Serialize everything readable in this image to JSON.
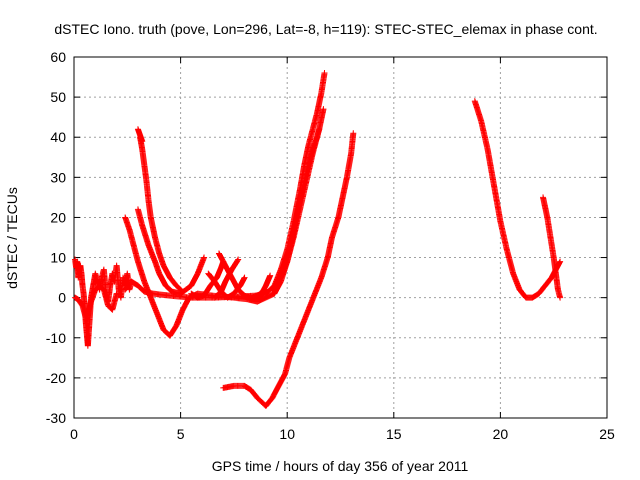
{
  "chart_data": {
    "type": "scatter",
    "title": "dSTEC Iono. truth (pove, Lon=296, Lat=-8, h=119): STEC-STEC_elemax in phase cont.",
    "xlabel": "GPS time / hours of day 356 of year 2011",
    "ylabel": "dSTEC  / TECUs",
    "xlim": [
      0,
      25
    ],
    "ylim": [
      -30,
      60
    ],
    "xticks": [
      0,
      5,
      10,
      15,
      20,
      25
    ],
    "yticks": [
      -30,
      -20,
      -10,
      0,
      10,
      20,
      30,
      40,
      50,
      60
    ],
    "grid": true,
    "marker": "+",
    "series_color": "#ff0000",
    "series": [
      {
        "arcs": [
          [
            [
              0.05,
              9.5
            ],
            [
              0.1,
              7.5
            ],
            [
              0.15,
              9
            ],
            [
              0.2,
              5
            ],
            [
              0.3,
              8
            ],
            [
              0.35,
              6
            ],
            [
              0.4,
              3
            ],
            [
              0.45,
              1
            ],
            [
              0.5,
              -2
            ],
            [
              0.55,
              -6
            ],
            [
              0.6,
              -9
            ],
            [
              0.65,
              -12
            ],
            [
              0.7,
              -8
            ],
            [
              0.75,
              -4
            ],
            [
              0.8,
              0
            ],
            [
              0.9,
              3
            ],
            [
              1.0,
              6
            ],
            [
              1.1,
              4
            ],
            [
              1.2,
              2
            ],
            [
              1.3,
              5
            ],
            [
              1.4,
              7
            ],
            [
              1.5,
              1
            ],
            [
              1.6,
              -1
            ],
            [
              1.7,
              3
            ],
            [
              1.8,
              6
            ],
            [
              1.9,
              4
            ],
            [
              2.0,
              8
            ],
            [
              2.1,
              2
            ],
            [
              2.2,
              0
            ],
            [
              2.3,
              5
            ],
            [
              2.4,
              3
            ],
            [
              2.5,
              6
            ],
            [
              2.6,
              2
            ],
            [
              2.7,
              4
            ]
          ],
          [
            [
              0.05,
              0
            ],
            [
              0.2,
              -0.5
            ],
            [
              0.4,
              -2
            ],
            [
              0.6,
              -6
            ],
            [
              0.7,
              -3
            ],
            [
              0.8,
              -1
            ],
            [
              1.0,
              2
            ],
            [
              1.2,
              3
            ],
            [
              1.4,
              2
            ],
            [
              1.6,
              -2
            ],
            [
              1.8,
              -3
            ],
            [
              2.0,
              1
            ]
          ],
          [
            [
              2.4,
              20
            ],
            [
              2.6,
              17
            ],
            [
              2.8,
              13
            ],
            [
              3.0,
              9
            ],
            [
              3.3,
              4
            ],
            [
              3.6,
              0
            ],
            [
              3.9,
              -4
            ],
            [
              4.2,
              -8
            ],
            [
              4.5,
              -9.5
            ],
            [
              4.8,
              -7
            ],
            [
              5.1,
              -3
            ],
            [
              5.4,
              0
            ],
            [
              5.8,
              1
            ],
            [
              6.5,
              0.5
            ],
            [
              7.5,
              0
            ],
            [
              8.3,
              -0.5
            ],
            [
              8.7,
              0
            ],
            [
              9.0,
              3
            ],
            [
              9.2,
              5.5
            ]
          ],
          [
            [
              2.4,
              2
            ],
            [
              2.7,
              4
            ],
            [
              3.0,
              3
            ],
            [
              3.3,
              1.5
            ],
            [
              3.7,
              1
            ],
            [
              4.5,
              0.5
            ],
            [
              5.5,
              0
            ],
            [
              6.5,
              0
            ],
            [
              7.5,
              0.2
            ],
            [
              8.5,
              0.5
            ],
            [
              9.0,
              1
            ]
          ],
          [
            [
              3.0,
              22
            ],
            [
              3.2,
              18
            ],
            [
              3.5,
              13
            ],
            [
              3.8,
              9
            ],
            [
              4.0,
              6
            ],
            [
              4.3,
              3
            ],
            [
              4.6,
              1.5
            ],
            [
              5.0,
              1
            ],
            [
              5.5,
              3
            ],
            [
              5.8,
              6
            ],
            [
              6.1,
              10
            ]
          ],
          [
            [
              3.1,
              40
            ],
            [
              3.2,
              37
            ],
            [
              3.3,
              33
            ],
            [
              3.4,
              29
            ],
            [
              3.5,
              24
            ],
            [
              3.6,
              20
            ],
            [
              3.8,
              15
            ],
            [
              4.0,
              11
            ],
            [
              4.2,
              8
            ],
            [
              4.5,
              5
            ],
            [
              4.8,
              3
            ],
            [
              5.0,
              2
            ]
          ],
          [
            [
              3.0,
              42
            ],
            [
              3.1,
              40.5
            ],
            [
              3.2,
              39
            ]
          ],
          [
            [
              5.5,
              1
            ],
            [
              5.8,
              0
            ],
            [
              6.1,
              0.5
            ],
            [
              6.4,
              3
            ],
            [
              6.7,
              5
            ],
            [
              6.9,
              7.5
            ],
            [
              7.0,
              9
            ]
          ],
          [
            [
              6.3,
              6
            ],
            [
              6.6,
              4
            ],
            [
              6.9,
              1.5
            ],
            [
              7.2,
              0
            ],
            [
              7.5,
              1
            ],
            [
              7.8,
              3
            ],
            [
              8.0,
              5
            ]
          ],
          [
            [
              6.8,
              11
            ],
            [
              7.1,
              8
            ],
            [
              7.4,
              5
            ],
            [
              7.7,
              2
            ],
            [
              8.0,
              0.5
            ],
            [
              8.3,
              0
            ],
            [
              8.6,
              0.5
            ],
            [
              9.0,
              2
            ]
          ],
          [
            [
              6.6,
              0
            ],
            [
              6.9,
              1.5
            ],
            [
              7.1,
              4
            ],
            [
              7.4,
              7
            ],
            [
              7.7,
              9.5
            ]
          ],
          [
            [
              7.0,
              -22.5
            ],
            [
              7.5,
              -22
            ],
            [
              8.0,
              -22
            ],
            [
              8.3,
              -23
            ],
            [
              8.6,
              -25
            ],
            [
              9.0,
              -27
            ],
            [
              9.3,
              -25
            ],
            [
              9.6,
              -22
            ],
            [
              9.9,
              -19
            ],
            [
              10.1,
              -15
            ],
            [
              10.4,
              -11
            ],
            [
              10.7,
              -7
            ],
            [
              11.0,
              -3
            ],
            [
              11.3,
              1
            ],
            [
              11.6,
              5
            ],
            [
              11.9,
              10
            ],
            [
              12.1,
              15
            ],
            [
              12.4,
              20
            ],
            [
              12.6,
              25
            ],
            [
              12.8,
              30
            ],
            [
              13.0,
              36
            ],
            [
              13.1,
              41
            ]
          ],
          [
            [
              8.2,
              -0.5
            ],
            [
              8.6,
              -1
            ],
            [
              9.0,
              0
            ],
            [
              9.4,
              1
            ],
            [
              9.7,
              4
            ],
            [
              10.0,
              9
            ],
            [
              10.3,
              15
            ],
            [
              10.6,
              22
            ],
            [
              10.9,
              29
            ],
            [
              11.2,
              36
            ],
            [
              11.5,
              42
            ],
            [
              11.7,
              47
            ]
          ],
          [
            [
              9.0,
              1
            ],
            [
              9.4,
              3
            ],
            [
              9.7,
              7
            ],
            [
              10.0,
              12
            ],
            [
              10.3,
              19
            ],
            [
              10.6,
              27
            ],
            [
              10.8,
              33
            ],
            [
              11.0,
              38
            ],
            [
              11.2,
              42
            ],
            [
              11.4,
              46
            ],
            [
              11.6,
              51
            ],
            [
              11.75,
              56
            ]
          ],
          [
            [
              9.3,
              2
            ],
            [
              9.7,
              5
            ],
            [
              10.0,
              9
            ],
            [
              10.3,
              16
            ],
            [
              10.6,
              24
            ],
            [
              10.9,
              31
            ],
            [
              11.2,
              37
            ],
            [
              11.4,
              40
            ],
            [
              11.5,
              42
            ]
          ],
          [
            [
              18.8,
              49
            ],
            [
              19.1,
              44
            ],
            [
              19.4,
              37
            ],
            [
              19.7,
              28
            ],
            [
              20.0,
              19
            ],
            [
              20.3,
              12
            ],
            [
              20.6,
              6
            ],
            [
              20.9,
              2
            ],
            [
              21.2,
              0
            ],
            [
              21.5,
              0
            ],
            [
              21.8,
              1
            ],
            [
              22.1,
              3
            ],
            [
              22.4,
              5
            ],
            [
              22.7,
              8
            ],
            [
              22.8,
              9
            ]
          ],
          [
            [
              22.0,
              25
            ],
            [
              22.2,
              20
            ],
            [
              22.35,
              15
            ],
            [
              22.5,
              10
            ],
            [
              22.6,
              6
            ],
            [
              22.7,
              2
            ],
            [
              22.8,
              0
            ]
          ]
        ]
      }
    ]
  }
}
